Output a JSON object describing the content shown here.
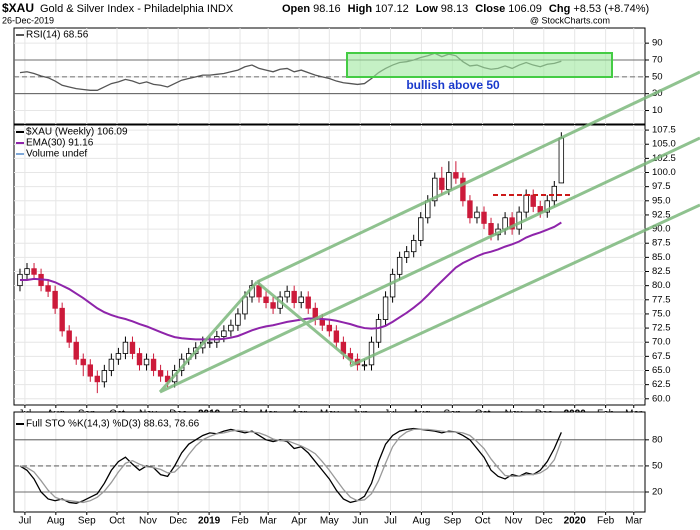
{
  "header": {
    "symbol": "$XAU",
    "name": "Gold & Silver Index - Philadelphia INDX",
    "date": "26-Dec-2019",
    "quote": [
      {
        "label": "Open",
        "value": 98.16
      },
      {
        "label": "High",
        "value": 107.12
      },
      {
        "label": "Low",
        "value": 98.13
      },
      {
        "label": "Close",
        "value": 106.09
      }
    ],
    "chg": {
      "label": "Chg",
      "text": "+8.53 (+8.74%)"
    },
    "source": "@ StockCharts.com"
  },
  "chart_data": [
    {
      "type": "line",
      "legend": "RSI(14) 68.56",
      "annotation": "bullish above 50",
      "ylim": [
        -6,
        108
      ],
      "yticks": [
        10,
        30,
        50,
        70,
        90
      ],
      "reference_lines": [
        {
          "value": 70,
          "dash": false
        },
        {
          "value": 50,
          "dash": true
        },
        {
          "value": 30,
          "dash": false
        }
      ],
      "series": [
        {
          "color": "#555555",
          "values": [
            55,
            56,
            54,
            51,
            49,
            45,
            40,
            38,
            36,
            35,
            34,
            34,
            38,
            42,
            44,
            47,
            45,
            42,
            44,
            41,
            40,
            38,
            42,
            46,
            48,
            50,
            52,
            52,
            53,
            54,
            56,
            58,
            62,
            64,
            60,
            58,
            56,
            59,
            60,
            56,
            58,
            55,
            52,
            50,
            48,
            45,
            43,
            42,
            41,
            42,
            48,
            55,
            60,
            64,
            67,
            68,
            70,
            73,
            75,
            78,
            74,
            77,
            75,
            68,
            63,
            64,
            61,
            59,
            60,
            63,
            60,
            64,
            67,
            64,
            62,
            65,
            66,
            68.56
          ]
        }
      ]
    },
    {
      "type": "candlestick",
      "legend": "$XAU (Weekly) 106.09",
      "legend_extra": "Volume undef",
      "xlim": [
        -0.85,
        88.9
      ],
      "xticks": [
        {
          "value": 0.7,
          "label": "Jul"
        },
        {
          "value": 5.1,
          "label": "Aug"
        },
        {
          "value": 9.5,
          "label": "Sep"
        },
        {
          "value": 13.8,
          "label": "Oct"
        },
        {
          "value": 18.2,
          "label": "Nov"
        },
        {
          "value": 22.5,
          "label": "Dec"
        },
        {
          "value": 26.9,
          "label": "2019"
        },
        {
          "value": 31.3,
          "label": "Feb"
        },
        {
          "value": 35.3,
          "label": "Mar"
        },
        {
          "value": 39.7,
          "label": "Apr"
        },
        {
          "value": 44,
          "label": "May"
        },
        {
          "value": 48.4,
          "label": "Jun"
        },
        {
          "value": 52.7,
          "label": "Jul"
        },
        {
          "value": 57.1,
          "label": "Aug"
        },
        {
          "value": 61.5,
          "label": "Sep"
        },
        {
          "value": 65.8,
          "label": "Oct"
        },
        {
          "value": 70.2,
          "label": "Nov"
        },
        {
          "value": 74.5,
          "label": "Dec"
        },
        {
          "value": 78.9,
          "label": "2020"
        },
        {
          "value": 83.3,
          "label": "Feb"
        },
        {
          "value": 87.3,
          "label": "Mar"
        }
      ],
      "ylim": [
        58.9,
        108.4
      ],
      "yticks": [
        {
          "value": 60,
          "label": "60.0"
        },
        62.5,
        {
          "value": 65,
          "label": "65.0"
        },
        67.5,
        {
          "value": 70,
          "label": "70.0"
        },
        72.5,
        {
          "value": 75,
          "label": "75.0"
        },
        77.5,
        {
          "value": 80,
          "label": "80.0"
        },
        82.5,
        {
          "value": 85,
          "label": "85.0"
        },
        87.5,
        {
          "value": 90,
          "label": "90.0"
        },
        92.5,
        {
          "value": 95,
          "label": "95.0"
        },
        97.5,
        {
          "value": 100,
          "label": "100.0"
        },
        102.5,
        {
          "value": 105,
          "label": "105.0"
        },
        107.5
      ],
      "up_color": "#000000",
      "down_color": "#cc1a3a",
      "open": [
        80,
        82,
        83,
        82,
        80,
        79,
        76,
        72,
        70,
        67,
        66,
        64,
        63,
        65,
        67,
        68,
        70,
        68,
        66,
        67,
        65,
        64,
        63,
        65,
        67,
        68,
        69,
        70,
        70,
        71,
        72,
        73,
        75,
        78,
        80,
        78,
        77,
        76,
        78,
        79,
        77,
        78,
        76,
        74,
        73,
        72,
        70,
        68,
        67,
        66,
        66,
        70,
        74,
        78,
        82,
        85,
        86,
        88,
        92,
        95,
        99,
        97,
        100,
        99,
        95,
        92,
        93,
        91,
        89,
        90,
        92,
        90,
        93,
        96,
        94,
        93,
        95,
        98.16
      ],
      "high": [
        83,
        84,
        84,
        83,
        81,
        80,
        77,
        73,
        71,
        68,
        67,
        65,
        66,
        68,
        69,
        71,
        71,
        69,
        68,
        68,
        66,
        65,
        66,
        68,
        69,
        70,
        71,
        71,
        72,
        73,
        74,
        76,
        79,
        81,
        81,
        79,
        78,
        79,
        80,
        80,
        79,
        79,
        77,
        75,
        74,
        73,
        71,
        69,
        68,
        67,
        71,
        75,
        79,
        83,
        86,
        87,
        89,
        93,
        96,
        100,
        101,
        102,
        102,
        100,
        96,
        94,
        94,
        92,
        91,
        93,
        93,
        94,
        97,
        97,
        95,
        96,
        98.5,
        107.12
      ],
      "low": [
        79,
        81,
        81,
        79,
        78,
        75,
        71,
        69,
        66,
        64,
        63,
        61,
        62,
        64,
        66,
        67,
        67,
        65,
        65,
        64,
        63,
        62,
        62,
        64,
        66,
        67,
        68,
        69,
        69,
        70,
        71,
        72,
        74,
        77,
        77,
        76,
        75,
        75,
        77,
        76,
        76,
        75,
        73,
        72,
        71,
        69,
        67,
        66,
        65,
        65,
        65,
        69,
        73,
        77,
        81,
        84,
        85,
        87,
        91,
        94,
        96,
        96,
        98,
        94,
        91,
        91,
        90,
        88,
        88,
        89,
        89,
        89,
        92,
        93,
        92,
        92,
        94,
        98.13
      ],
      "close": [
        82,
        83,
        82,
        80,
        79,
        76,
        72,
        70,
        67,
        66,
        64,
        63,
        65,
        67,
        68,
        70,
        68,
        66,
        67,
        65,
        64,
        63,
        65,
        67,
        68,
        69,
        70,
        70,
        71,
        72,
        73,
        75,
        78,
        80,
        78,
        77,
        76,
        78,
        79,
        77,
        78,
        76,
        74,
        73,
        72,
        70,
        68,
        67,
        66,
        66,
        70,
        74,
        78,
        82,
        85,
        86,
        88,
        92,
        95,
        99,
        97,
        100,
        99,
        95,
        92,
        93,
        91,
        89,
        90,
        92,
        90,
        93,
        96,
        94,
        93,
        95,
        97.56,
        106.09
      ],
      "series": [
        {
          "name": "EMA(30) 91.16",
          "color": "#8e24aa",
          "values": [
            81,
            81,
            81.2,
            81.1,
            81,
            80.6,
            80,
            79.4,
            78.6,
            77.8,
            76.9,
            76,
            75.3,
            74.8,
            74.4,
            74.1,
            73.7,
            73.2,
            72.8,
            72.3,
            71.8,
            71.3,
            70.9,
            70.7,
            70.6,
            70.5,
            70.5,
            70.5,
            70.5,
            70.6,
            70.8,
            71.1,
            71.6,
            72.1,
            72.5,
            72.8,
            73,
            73.3,
            73.6,
            73.8,
            74,
            74.2,
            74.2,
            74.1,
            74,
            73.8,
            73.5,
            73.2,
            72.8,
            72.5,
            72.4,
            72.5,
            72.9,
            73.6,
            74.4,
            75.2,
            76.1,
            77.1,
            78.3,
            79.6,
            80.8,
            82,
            83.2,
            84,
            84.6,
            85.2,
            85.7,
            86,
            86.4,
            86.9,
            87.3,
            87.8,
            88.5,
            89,
            89.4,
            89.9,
            90.4,
            91.16
          ]
        }
      ]
    },
    {
      "type": "line",
      "legend": "Full STO %K(14,3) %D(3) 88.63, 78.66",
      "ylim": [
        -3,
        112
      ],
      "yticks": [
        20,
        50,
        80
      ],
      "reference_lines": [
        {
          "value": 80,
          "dash": false
        },
        {
          "value": 50,
          "dash": true
        },
        {
          "value": 20,
          "dash": false
        }
      ],
      "xticks": [
        {
          "value": 0.7,
          "label": "Jul"
        },
        {
          "value": 5.1,
          "label": "Aug"
        },
        {
          "value": 9.5,
          "label": "Sep"
        },
        {
          "value": 13.8,
          "label": "Oct"
        },
        {
          "value": 18.2,
          "label": "Nov"
        },
        {
          "value": 22.5,
          "label": "Dec"
        },
        {
          "value": 26.9,
          "label": "2019"
        },
        {
          "value": 31.3,
          "label": "Feb"
        },
        {
          "value": 35.3,
          "label": "Mar"
        },
        {
          "value": 39.7,
          "label": "Apr"
        },
        {
          "value": 44,
          "label": "May"
        },
        {
          "value": 48.4,
          "label": "Jun"
        },
        {
          "value": 52.7,
          "label": "Jul"
        },
        {
          "value": 57.1,
          "label": "Aug"
        },
        {
          "value": 61.5,
          "label": "Sep"
        },
        {
          "value": 65.8,
          "label": "Oct"
        },
        {
          "value": 70.2,
          "label": "Nov"
        },
        {
          "value": 74.5,
          "label": "Dec"
        },
        {
          "value": 78.9,
          "label": "2020"
        },
        {
          "value": 83.3,
          "label": "Feb"
        },
        {
          "value": 87.3,
          "label": "Mar"
        }
      ],
      "series": [
        {
          "color": "#000000",
          "values": [
            50,
            45,
            35,
            20,
            12,
            10,
            12,
            8,
            7,
            10,
            14,
            18,
            30,
            45,
            55,
            60,
            52,
            45,
            50,
            48,
            40,
            38,
            50,
            65,
            75,
            80,
            85,
            88,
            87,
            90,
            92,
            90,
            88,
            90,
            85,
            80,
            78,
            80,
            78,
            70,
            72,
            65,
            55,
            45,
            35,
            22,
            12,
            8,
            10,
            15,
            30,
            55,
            75,
            85,
            90,
            92,
            93,
            92,
            91,
            90,
            88,
            90,
            89,
            85,
            80,
            70,
            60,
            45,
            38,
            35,
            40,
            38,
            42,
            40,
            45,
            55,
            70,
            88.63
          ]
        },
        {
          "color": "#999999",
          "values": [
            50,
            48,
            43,
            33,
            22,
            14,
            11,
            10,
            9,
            8,
            10,
            14,
            21,
            31,
            43,
            53,
            56,
            52,
            49,
            48,
            46,
            42,
            43,
            51,
            63,
            73,
            80,
            84,
            87,
            88,
            90,
            91,
            90,
            89,
            88,
            85,
            81,
            79,
            79,
            76,
            73,
            69,
            64,
            55,
            45,
            34,
            23,
            14,
            10,
            11,
            18,
            33,
            53,
            72,
            83,
            89,
            92,
            92,
            92,
            91,
            90,
            89,
            89,
            88,
            85,
            78,
            70,
            58,
            48,
            39,
            38,
            38,
            40,
            40,
            42,
            47,
            57,
            78.66
          ]
        }
      ]
    }
  ]
}
